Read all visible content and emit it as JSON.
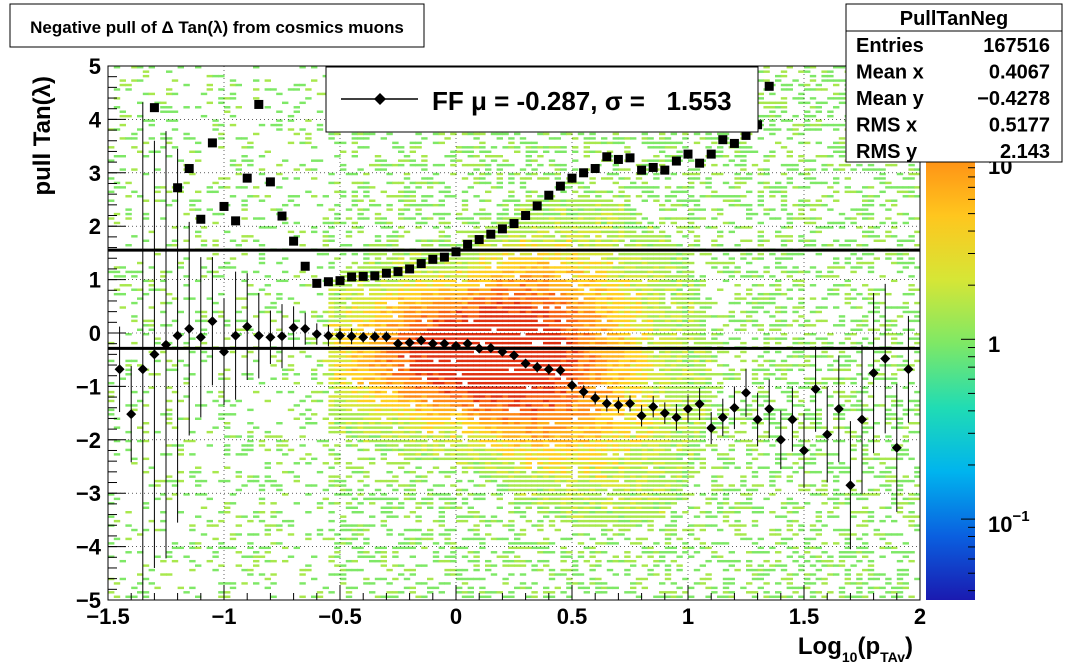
{
  "title": "Negative pull of Δ Tan(λ) from cosmics muons",
  "stats": {
    "name": "PullTanNeg",
    "rows": [
      {
        "label": "Entries",
        "value": "167516"
      },
      {
        "label": "Mean x",
        "value": "0.4067"
      },
      {
        "label": "Mean y",
        "value": "−0.4278"
      },
      {
        "label": "RMS x",
        "value": "0.5177"
      },
      {
        "label": "RMS y",
        "value": "2.143"
      }
    ]
  },
  "legend": {
    "text": "FF μ = -0.287, σ =   1.553"
  },
  "xaxis": {
    "label": "Log",
    "label_sub": "10",
    "label_mid": "(p",
    "label_sub2": "TAv",
    "label_end": ")",
    "ticks": [
      "−1.5",
      "−1",
      "−0.5",
      "0",
      "0.5",
      "1",
      "1.5",
      "2"
    ]
  },
  "yaxis": {
    "label": "pull Tan(λ)",
    "ticks": [
      "−5",
      "−4",
      "−3",
      "−2",
      "−1",
      "0",
      "1",
      "2",
      "3",
      "4",
      "5"
    ]
  },
  "colorbar": {
    "labels": [
      {
        "base": "10",
        "exp": "−1"
      },
      {
        "base": "1",
        "exp": ""
      },
      {
        "base": "10",
        "exp": ""
      }
    ]
  },
  "chart_data": {
    "type": "heatmap",
    "title": "Negative pull of Δ Tan(λ) from cosmics muons",
    "xlabel": "Log10(pTAv)",
    "ylabel": "pull Tan(λ)",
    "xlim": [
      -1.5,
      2
    ],
    "ylim": [
      -5,
      5
    ],
    "z_scale": "log",
    "grid": true,
    "legend_position": "top-center",
    "colorbar_position": "right",
    "heatmap_summary": {
      "entries": 167516,
      "mean_x": 0.4067,
      "mean_y": -0.4278,
      "rms_x": 0.5177,
      "rms_y": 2.143
    },
    "fit_lines": [
      {
        "name": "mean",
        "y": -0.287
      },
      {
        "name": "sigma",
        "y": 1.553
      }
    ],
    "series": [
      {
        "name": "mean",
        "marker": "diamond",
        "x": [
          -1.45,
          -1.4,
          -1.35,
          -1.3,
          -1.25,
          -1.2,
          -1.15,
          -1.1,
          -1.05,
          -1.0,
          -0.95,
          -0.9,
          -0.85,
          -0.8,
          -0.75,
          -0.7,
          -0.65,
          -0.6,
          -0.55,
          -0.5,
          -0.45,
          -0.4,
          -0.35,
          -0.3,
          -0.25,
          -0.2,
          -0.15,
          -0.1,
          -0.05,
          0.0,
          0.05,
          0.1,
          0.15,
          0.2,
          0.25,
          0.3,
          0.35,
          0.4,
          0.45,
          0.5,
          0.55,
          0.6,
          0.65,
          0.7,
          0.75,
          0.8,
          0.85,
          0.9,
          0.95,
          1.0,
          1.05,
          1.1,
          1.15,
          1.2,
          1.25,
          1.3,
          1.35,
          1.4,
          1.45,
          1.5,
          1.55,
          1.6,
          1.65,
          1.7,
          1.75,
          1.8,
          1.85,
          1.9,
          1.95
        ],
        "y": [
          -0.68,
          -1.52,
          -0.68,
          -0.4,
          -0.22,
          -0.05,
          0.08,
          -0.08,
          0.22,
          -0.35,
          -0.05,
          0.12,
          -0.05,
          -0.08,
          -0.06,
          0.1,
          0.08,
          -0.02,
          -0.05,
          -0.05,
          -0.06,
          -0.08,
          -0.07,
          -0.07,
          -0.2,
          -0.18,
          -0.14,
          -0.2,
          -0.2,
          -0.24,
          -0.2,
          -0.29,
          -0.28,
          -0.35,
          -0.42,
          -0.57,
          -0.64,
          -0.68,
          -0.7,
          -0.98,
          -1.1,
          -1.22,
          -1.32,
          -1.35,
          -1.32,
          -1.55,
          -1.38,
          -1.5,
          -1.58,
          -1.42,
          -1.33,
          -1.78,
          -1.58,
          -1.4,
          -1.12,
          -1.62,
          -1.42,
          -2.0,
          -1.62,
          -2.2,
          -1.05,
          -1.9,
          -1.42,
          -2.85,
          -1.62,
          -0.75,
          -0.48,
          -2.15,
          -0.68
        ],
        "yerr": [
          0.8,
          0.9,
          5.0,
          4.0,
          4.0,
          3.5,
          2.0,
          1.5,
          1.2,
          1.0,
          1.2,
          1.0,
          0.8,
          0.5,
          0.6,
          0.4,
          0.3,
          0.2,
          0.2,
          0.15,
          0.15,
          0.1,
          0.1,
          0.1,
          0.08,
          0.08,
          0.08,
          0.08,
          0.08,
          0.08,
          0.08,
          0.08,
          0.08,
          0.08,
          0.08,
          0.08,
          0.1,
          0.1,
          0.1,
          0.12,
          0.12,
          0.12,
          0.15,
          0.15,
          0.15,
          0.2,
          0.2,
          0.2,
          0.25,
          0.25,
          0.3,
          0.3,
          0.35,
          0.4,
          0.45,
          0.5,
          0.55,
          0.55,
          0.6,
          0.7,
          0.8,
          0.9,
          1.0,
          1.2,
          1.4,
          1.5,
          1.4,
          1.2,
          1.0
        ]
      },
      {
        "name": "sigma",
        "marker": "square",
        "x": [
          -1.3,
          -1.2,
          -1.15,
          -1.1,
          -1.05,
          -1.0,
          -0.95,
          -0.9,
          -0.85,
          -0.8,
          -0.75,
          -0.7,
          -0.65,
          -0.6,
          -0.55,
          -0.5,
          -0.45,
          -0.4,
          -0.35,
          -0.3,
          -0.25,
          -0.2,
          -0.15,
          -0.1,
          -0.05,
          0.0,
          0.05,
          0.1,
          0.15,
          0.2,
          0.25,
          0.3,
          0.35,
          0.4,
          0.45,
          0.5,
          0.55,
          0.6,
          0.65,
          0.7,
          0.75,
          0.8,
          0.85,
          0.9,
          0.95,
          1.0,
          1.05,
          1.1,
          1.15,
          1.2,
          1.25,
          1.3,
          1.35
        ],
        "y": [
          4.22,
          2.72,
          3.08,
          2.13,
          3.56,
          2.37,
          2.1,
          2.9,
          4.28,
          2.83,
          2.19,
          1.72,
          1.25,
          0.93,
          0.96,
          0.98,
          1.05,
          1.06,
          1.07,
          1.12,
          1.15,
          1.2,
          1.3,
          1.38,
          1.42,
          1.52,
          1.66,
          1.75,
          1.85,
          1.95,
          2.05,
          2.2,
          2.38,
          2.58,
          2.75,
          2.9,
          3.0,
          3.08,
          3.3,
          3.25,
          3.28,
          3.05,
          3.1,
          3.05,
          3.22,
          3.35,
          3.18,
          3.35,
          3.62,
          3.55,
          3.7,
          3.9,
          4.62
        ],
        "yerr": []
      }
    ]
  }
}
